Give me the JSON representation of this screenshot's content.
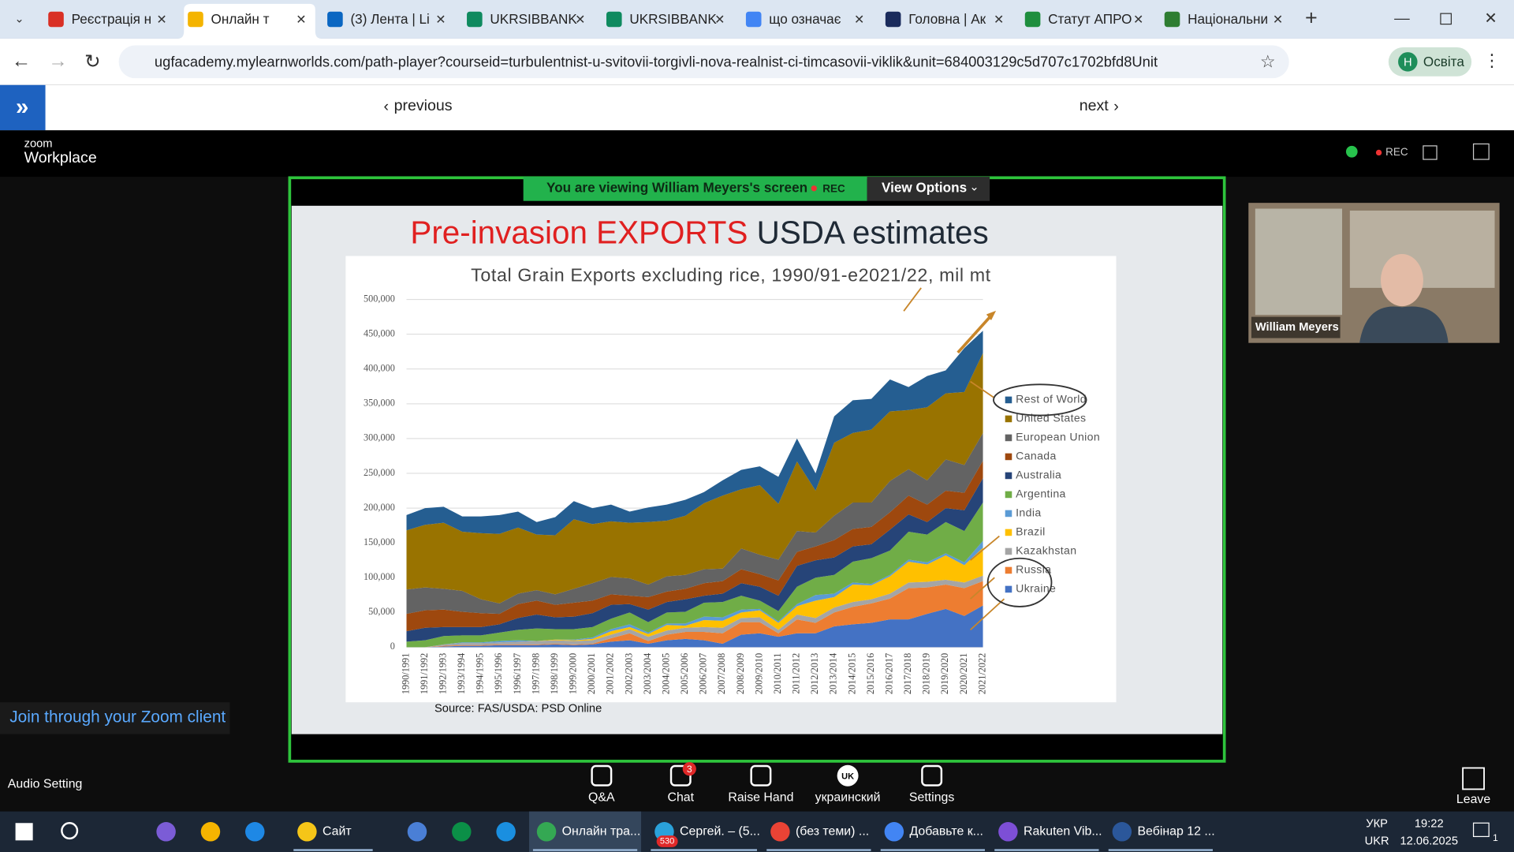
{
  "browser": {
    "tabs": [
      "Реєстрація н",
      "Онлайн т",
      "(3) Лента | Li",
      "UKRSIBBANK",
      "UKRSIBBANK",
      "що означає",
      "Головна | Ак",
      "Статут АПРО",
      "Національни"
    ],
    "url": "ugfacademy.mylearnworlds.com/path-player?courseid=turbulentnist-u-svitovii-torgivli-nova-realnist-ci-timcasovii-viklik&unit=684003129c5d707c1702bfd8Unit",
    "profile": "Освіта",
    "profile_initial": "Н"
  },
  "page_nav": {
    "previous": "previous",
    "next": "next"
  },
  "zoom": {
    "logo_small": "zoom",
    "logo": "Workplace",
    "rec": "REC",
    "banner": "You are viewing  William Meyers's screen",
    "banner_rec": "REC",
    "view_options": "View Options",
    "participant": "William Meyers",
    "join": "Join through your Zoom client",
    "audio": "Audio Setting",
    "toolbar": [
      "Q&A",
      "Chat",
      "Raise Hand",
      "украинский",
      "Settings"
    ],
    "chat_badge": "3",
    "language_icon": "UK",
    "leave": "Leave"
  },
  "slide": {
    "title_red": "Pre-invasion EXPORTS",
    "title_rest": "USDA estimates",
    "source": "Source: FAS/USDA: PSD Online"
  },
  "chart_data": {
    "type": "area",
    "stacked": true,
    "title": "Total Grain Exports excluding rice, 1990/91-e2021/22, mil mt",
    "categories": [
      "1990/1991",
      "1991/1992",
      "1992/1993",
      "1993/1994",
      "1994/1995",
      "1995/1996",
      "1996/1997",
      "1997/1998",
      "1998/1999",
      "1999/2000",
      "2000/2001",
      "2001/2002",
      "2002/2003",
      "2003/2004",
      "2004/2005",
      "2005/2006",
      "2006/2007",
      "2007/2008",
      "2008/2009",
      "2009/2010",
      "2010/2011",
      "2011/2012",
      "2012/2013",
      "2013/2014",
      "2014/2015",
      "2015/2016",
      "2016/2017",
      "2017/2018",
      "2018/2019",
      "2019/2020",
      "2020/2021",
      "2021/2022"
    ],
    "ylim": [
      0,
      500000
    ],
    "yticks": [
      0,
      {
        "value": 50000,
        "label": "50,000"
      },
      {
        "value": 100000,
        "label": "100,000"
      },
      {
        "value": 150000,
        "label": "150,000"
      },
      {
        "value": 200000,
        "label": "200,000"
      },
      {
        "value": 250000,
        "label": "250,000"
      },
      {
        "value": 300000,
        "label": "300,000"
      },
      {
        "value": 350000,
        "label": "350,000"
      },
      {
        "value": 400000,
        "label": "400,000"
      },
      {
        "value": 450000,
        "label": "450,000"
      },
      {
        "value": 500000,
        "label": "500,000"
      }
    ],
    "grid": true,
    "series": [
      {
        "name": "Ukraine",
        "color": "#4472c4",
        "values": [
          0,
          0,
          1000,
          2000,
          2000,
          3000,
          3000,
          3000,
          4000,
          3000,
          4000,
          8000,
          10000,
          5000,
          10000,
          12000,
          10000,
          5000,
          18000,
          20000,
          15000,
          20000,
          20000,
          30000,
          33000,
          35000,
          40000,
          40000,
          48000,
          55000,
          45000,
          60000
        ]
      },
      {
        "name": "Russia",
        "color": "#ed7d31",
        "values": [
          0,
          0,
          1000,
          1000,
          1000,
          1000,
          1000,
          1000,
          1000,
          1000,
          1000,
          5000,
          10000,
          4000,
          8000,
          10000,
          12000,
          15000,
          18000,
          16000,
          5000,
          20000,
          15000,
          20000,
          25000,
          28000,
          30000,
          45000,
          38000,
          35000,
          40000,
          35000
        ]
      },
      {
        "name": "Kazakhstan",
        "color": "#a5a5a5",
        "values": [
          0,
          0,
          2000,
          3000,
          3000,
          3000,
          4000,
          5000,
          5000,
          5000,
          5000,
          5000,
          6000,
          6000,
          6000,
          6000,
          7000,
          8000,
          6000,
          7000,
          5000,
          7000,
          7000,
          7000,
          7000,
          6000,
          7000,
          8000,
          8000,
          7000,
          8000,
          8000
        ]
      },
      {
        "name": "Brazil",
        "color": "#ffc000",
        "values": [
          0,
          0,
          0,
          0,
          0,
          0,
          0,
          0,
          1000,
          1000,
          2000,
          5000,
          3000,
          4000,
          8000,
          3000,
          10000,
          10000,
          8000,
          10000,
          10000,
          12000,
          25000,
          15000,
          25000,
          20000,
          25000,
          30000,
          25000,
          35000,
          25000,
          40000
        ]
      },
      {
        "name": "India",
        "color": "#5b9bd5",
        "values": [
          0,
          0,
          0,
          1000,
          1000,
          2000,
          2000,
          0,
          0,
          1000,
          2000,
          3000,
          4000,
          2000,
          2000,
          3000,
          5000,
          5000,
          4000,
          2000,
          2000,
          3000,
          8000,
          5000,
          3000,
          2000,
          2000,
          3000,
          3000,
          3000,
          4000,
          10000
        ]
      },
      {
        "name": "Argentina",
        "color": "#70ad47",
        "values": [
          8000,
          10000,
          12000,
          10000,
          10000,
          12000,
          15000,
          18000,
          15000,
          15000,
          15000,
          15000,
          17000,
          15000,
          16000,
          17000,
          20000,
          22000,
          20000,
          12000,
          15000,
          25000,
          25000,
          27000,
          30000,
          37000,
          35000,
          40000,
          40000,
          45000,
          45000,
          55000
        ]
      },
      {
        "name": "Australia",
        "color": "#264478",
        "values": [
          15000,
          18000,
          13000,
          12000,
          12000,
          12000,
          17000,
          20000,
          17000,
          18000,
          20000,
          20000,
          12000,
          18000,
          15000,
          18000,
          10000,
          12000,
          18000,
          20000,
          22000,
          30000,
          25000,
          25000,
          22000,
          20000,
          30000,
          25000,
          18000,
          20000,
          30000,
          35000
        ]
      },
      {
        "name": "Canada",
        "color": "#9e480e",
        "values": [
          25000,
          25000,
          25000,
          22000,
          20000,
          15000,
          20000,
          20000,
          18000,
          20000,
          18000,
          15000,
          12000,
          18000,
          15000,
          15000,
          18000,
          18000,
          20000,
          18000,
          22000,
          20000,
          20000,
          25000,
          25000,
          25000,
          25000,
          27000,
          25000,
          25000,
          25000,
          25000
        ]
      },
      {
        "name": "European Union",
        "color": "#636363",
        "values": [
          35000,
          33000,
          30000,
          30000,
          20000,
          15000,
          15000,
          15000,
          15000,
          20000,
          25000,
          25000,
          25000,
          18000,
          22000,
          20000,
          20000,
          18000,
          30000,
          28000,
          30000,
          30000,
          20000,
          35000,
          38000,
          35000,
          45000,
          38000,
          35000,
          45000,
          40000,
          40000
        ]
      },
      {
        "name": "United States",
        "color": "#997300",
        "values": [
          85000,
          90000,
          95000,
          85000,
          95000,
          100000,
          95000,
          80000,
          85000,
          100000,
          85000,
          80000,
          80000,
          90000,
          80000,
          85000,
          95000,
          105000,
          85000,
          100000,
          80000,
          100000,
          60000,
          105000,
          100000,
          105000,
          100000,
          85000,
          105000,
          95000,
          105000,
          115000
        ]
      },
      {
        "name": "Rest of World",
        "color": "#255e91",
        "values": [
          22000,
          24000,
          23000,
          22000,
          24000,
          27000,
          23000,
          18000,
          26000,
          26000,
          23000,
          24000,
          16000,
          21000,
          23000,
          23000,
          16000,
          22000,
          28000,
          27000,
          39000,
          33000,
          25000,
          38000,
          47000,
          44000,
          46000,
          33000,
          45000,
          33000,
          63000,
          32000
        ]
      }
    ]
  },
  "taskbar": {
    "items": [
      "Сайт",
      "Онлайн тра...",
      "Сергей. – (5...",
      "(без теми) ...",
      "Добавьте к...",
      "Rakuten Vib...",
      "Вебінар 12 ..."
    ],
    "badge": "530",
    "lang": "УКР",
    "lang2": "UKR",
    "time": "19:22",
    "date": "12.06.2025",
    "notifications": "1"
  }
}
